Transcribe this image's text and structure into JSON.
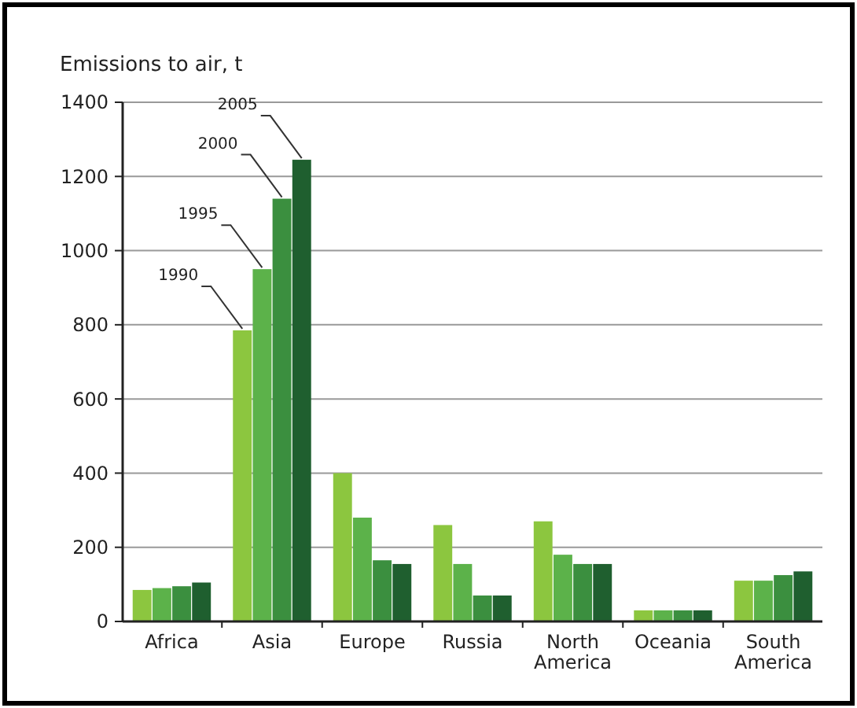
{
  "chart_data": {
    "type": "bar",
    "ylabel": "Emissions to air, t",
    "categories": [
      "Africa",
      "Asia",
      "Europe",
      "Russia",
      "North America",
      "Oceania",
      "South America"
    ],
    "series": [
      {
        "name": "1990",
        "color": "#8cc63f",
        "values": [
          85,
          785,
          400,
          260,
          270,
          30,
          110
        ]
      },
      {
        "name": "1995",
        "color": "#5cb24a",
        "values": [
          90,
          950,
          280,
          155,
          180,
          30,
          110
        ]
      },
      {
        "name": "2000",
        "color": "#3b8f3f",
        "values": [
          95,
          1140,
          165,
          70,
          155,
          30,
          125
        ]
      },
      {
        "name": "2005",
        "color": "#1f5f2f",
        "values": [
          105,
          1245,
          155,
          70,
          155,
          30,
          135
        ]
      }
    ],
    "ylim": [
      0,
      1400
    ],
    "yticks": [
      0,
      200,
      400,
      600,
      800,
      1000,
      1200,
      1400
    ],
    "grid": "y",
    "legend": false
  }
}
